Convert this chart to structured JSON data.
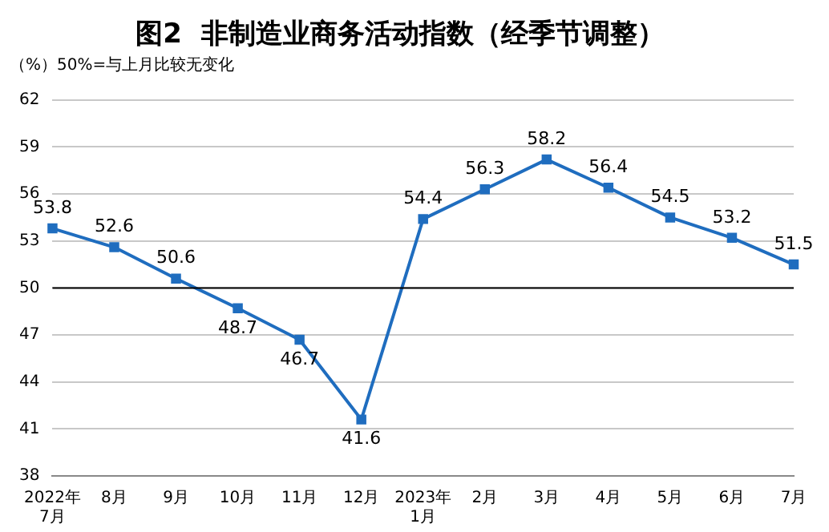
{
  "chart_data": {
    "type": "line",
    "title": "图2  非制造业商务活动指数（经季节调整）",
    "annotations": [
      "（%）50%=与上月比较无变化"
    ],
    "categories": [
      "2022年\n7月",
      "8月",
      "9月",
      "10月",
      "11月",
      "12月",
      "2023年\n1月",
      "2月",
      "3月",
      "4月",
      "5月",
      "6月",
      "7月"
    ],
    "series": [
      {
        "color": "#1f6dbf",
        "values": [
          53.8,
          52.6,
          50.6,
          48.7,
          46.7,
          41.6,
          54.4,
          56.3,
          58.2,
          56.4,
          54.5,
          53.2,
          51.5
        ]
      }
    ],
    "ylim": [
      38,
      62
    ],
    "yticks": [
      38,
      41,
      44,
      47,
      50,
      53,
      56,
      59,
      62
    ],
    "grid": "y",
    "legend": false,
    "marker": "square",
    "line_style": "solid",
    "data_labels": true,
    "ref_lines": [
      {
        "axis": "y",
        "value": 50,
        "label": null,
        "color": "#000000"
      }
    ]
  }
}
